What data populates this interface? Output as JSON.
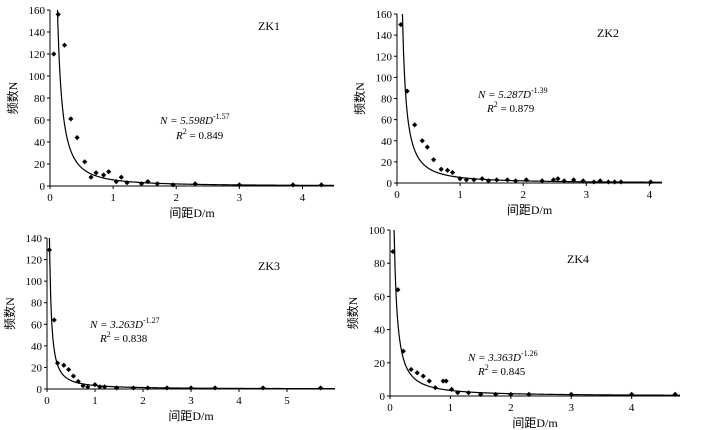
{
  "chart_data": [
    {
      "type": "scatter",
      "title": "ZK1",
      "xlabel": "间距D/m",
      "ylabel": "频数N",
      "xlim": [
        0,
        4.5
      ],
      "ylim": [
        0,
        160
      ],
      "xticks": [
        "0",
        "1",
        "2",
        "3",
        "4"
      ],
      "yticks": [
        "0",
        "20",
        "40",
        "60",
        "80",
        "100",
        "120",
        "140",
        "160"
      ],
      "equation": {
        "prefix": "N = 5.598D",
        "exponent": "-1.57"
      },
      "r2": {
        "prefix": "R",
        "sup": "2",
        "suffix": " = 0.849"
      },
      "fit": {
        "a": 5.598,
        "b": -1.57
      },
      "points": [
        [
          0.06,
          120
        ],
        [
          0.13,
          156
        ],
        [
          0.23,
          128
        ],
        [
          0.33,
          61
        ],
        [
          0.43,
          44
        ],
        [
          0.55,
          22
        ],
        [
          0.65,
          8
        ],
        [
          0.73,
          12
        ],
        [
          0.85,
          10
        ],
        [
          0.93,
          13
        ],
        [
          1.05,
          4
        ],
        [
          1.13,
          8
        ],
        [
          1.22,
          3
        ],
        [
          1.45,
          2
        ],
        [
          1.55,
          4
        ],
        [
          1.7,
          2
        ],
        [
          1.95,
          1
        ],
        [
          2.3,
          2
        ],
        [
          3.0,
          1
        ],
        [
          3.85,
          1
        ],
        [
          4.3,
          1
        ]
      ]
    },
    {
      "type": "scatter",
      "title": "ZK2",
      "xlabel": "间距D/m",
      "ylabel": "频数N",
      "xlim": [
        0,
        4.2
      ],
      "ylim": [
        0,
        160
      ],
      "xticks": [
        "0",
        "1",
        "2",
        "3",
        "4"
      ],
      "yticks": [
        "0",
        "20",
        "40",
        "60",
        "80",
        "100",
        "120",
        "140",
        "160"
      ],
      "equation": {
        "prefix": "N = 5.287D",
        "exponent": "-1.39"
      },
      "r2": {
        "prefix": "R",
        "sup": "2",
        "suffix": " = 0.879"
      },
      "fit": {
        "a": 5.287,
        "b": -1.39
      },
      "points": [
        [
          0.06,
          150
        ],
        [
          0.16,
          87
        ],
        [
          0.28,
          55
        ],
        [
          0.4,
          40
        ],
        [
          0.48,
          34
        ],
        [
          0.58,
          22
        ],
        [
          0.7,
          13
        ],
        [
          0.8,
          12
        ],
        [
          0.88,
          10
        ],
        [
          1.0,
          4
        ],
        [
          1.1,
          3
        ],
        [
          1.22,
          3
        ],
        [
          1.35,
          4
        ],
        [
          1.45,
          2
        ],
        [
          1.58,
          3
        ],
        [
          1.75,
          3
        ],
        [
          1.88,
          2
        ],
        [
          2.05,
          3
        ],
        [
          2.3,
          2
        ],
        [
          2.48,
          3
        ],
        [
          2.55,
          4
        ],
        [
          2.65,
          2
        ],
        [
          2.8,
          3
        ],
        [
          2.95,
          2
        ],
        [
          3.12,
          1
        ],
        [
          3.22,
          2
        ],
        [
          3.35,
          1
        ],
        [
          3.45,
          1
        ],
        [
          3.55,
          1
        ],
        [
          4.02,
          1
        ]
      ]
    },
    {
      "type": "scatter",
      "title": "ZK3",
      "xlabel": "间距D/m",
      "ylabel": "频数N",
      "xlim": [
        0,
        6
      ],
      "ylim": [
        0,
        140
      ],
      "xticks": [
        "0",
        "1",
        "2",
        "3",
        "4",
        "5"
      ],
      "yticks": [
        "0",
        "20",
        "40",
        "60",
        "80",
        "100",
        "120",
        "140"
      ],
      "equation": {
        "prefix": "N = 3.263D",
        "exponent": "-1.27"
      },
      "r2": {
        "prefix": "R",
        "sup": "2",
        "suffix": " = 0.838"
      },
      "fit": {
        "a": 3.263,
        "b": -1.27
      },
      "points": [
        [
          0.05,
          129
        ],
        [
          0.15,
          64
        ],
        [
          0.22,
          24
        ],
        [
          0.35,
          22
        ],
        [
          0.45,
          18
        ],
        [
          0.55,
          12
        ],
        [
          0.65,
          7
        ],
        [
          0.75,
          3
        ],
        [
          0.85,
          2
        ],
        [
          1.0,
          4
        ],
        [
          1.1,
          2
        ],
        [
          1.2,
          2
        ],
        [
          1.45,
          1
        ],
        [
          1.8,
          1
        ],
        [
          2.1,
          1
        ],
        [
          2.5,
          1
        ],
        [
          3.0,
          1
        ],
        [
          3.5,
          1
        ],
        [
          4.5,
          1
        ],
        [
          5.7,
          1
        ]
      ]
    },
    {
      "type": "scatter",
      "title": "ZK4",
      "xlabel": "间距D/m",
      "ylabel": "频数N",
      "xlim": [
        0,
        4.8
      ],
      "ylim": [
        0,
        100
      ],
      "xticks": [
        "0",
        "1",
        "2",
        "3",
        "4"
      ],
      "yticks": [
        "0",
        "20",
        "40",
        "60",
        "80",
        "100"
      ],
      "equation": {
        "prefix": "N = 3.363D",
        "exponent": "-1.26"
      },
      "r2": {
        "prefix": "R",
        "sup": "2",
        "suffix": " = 0.845"
      },
      "fit": {
        "a": 3.363,
        "b": -1.26
      },
      "points": [
        [
          0.05,
          87
        ],
        [
          0.13,
          64
        ],
        [
          0.22,
          27
        ],
        [
          0.35,
          16
        ],
        [
          0.45,
          14
        ],
        [
          0.55,
          12
        ],
        [
          0.65,
          9
        ],
        [
          0.75,
          5
        ],
        [
          0.88,
          9
        ],
        [
          0.93,
          9
        ],
        [
          1.02,
          4
        ],
        [
          1.12,
          2
        ],
        [
          1.3,
          2
        ],
        [
          1.5,
          1
        ],
        [
          1.75,
          1
        ],
        [
          2.0,
          1
        ],
        [
          2.3,
          1
        ],
        [
          3.0,
          1
        ],
        [
          4.0,
          1
        ],
        [
          4.72,
          1
        ]
      ]
    }
  ]
}
